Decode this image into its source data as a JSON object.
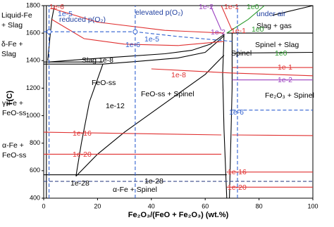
{
  "chart_data": {
    "type": "line",
    "xlabel": "Fe₂O₃/(FeO + Fe₂O₃) (wt.%)",
    "ylabel": "T(C)",
    "xlim": [
      0,
      100
    ],
    "ylim": [
      400,
      1800
    ],
    "xticks": [
      0,
      20,
      40,
      60,
      80,
      100
    ],
    "yticks": [
      400,
      600,
      800,
      1000,
      1200,
      1400,
      1600,
      1800
    ],
    "series": [
      {
        "color": "#000000",
        "x": [
          1,
          1
        ],
        "values": [
          400,
          1800
        ]
      },
      {
        "color": "#000000",
        "x": [
          4,
          3,
          2.5,
          2,
          1.5
        ],
        "values": [
          1800,
          1700,
          1600,
          1500,
          1400
        ]
      },
      {
        "color": "#000000",
        "x": [
          0,
          22
        ],
        "values": [
          1390,
          1390
        ]
      },
      {
        "color": "#000000",
        "x": [
          0,
          22
        ],
        "values": [
          1375,
          1375
        ]
      },
      {
        "color": "#000000",
        "x": [
          2,
          15,
          30,
          45,
          55,
          62,
          67
        ],
        "values": [
          1390,
          1410,
          1430,
          1450,
          1475,
          1520,
          1590
        ]
      },
      {
        "color": "#000000",
        "x": [
          22,
          35,
          50,
          60,
          67
        ],
        "values": [
          1375,
          1395,
          1420,
          1460,
          1580
        ]
      },
      {
        "color": "#000000",
        "x": [
          22,
          17,
          14,
          12
        ],
        "values": [
          1375,
          1100,
          800,
          560
        ]
      },
      {
        "color": "#000000",
        "x": [
          12,
          20,
          30,
          40,
          50,
          60,
          67
        ],
        "values": [
          560,
          720,
          880,
          1020,
          1160,
          1300,
          1440
        ]
      },
      {
        "color": "#000000",
        "x": [
          0,
          68
        ],
        "values": [
          570,
          570
        ]
      },
      {
        "color": "#000000",
        "x": [
          67,
          66.5,
          67,
          68
        ],
        "values": [
          1590,
          1300,
          900,
          400
        ]
      },
      {
        "color": "#000000",
        "x": [
          70,
          70,
          69.5,
          69
        ],
        "values": [
          1600,
          1200,
          800,
          400
        ]
      },
      {
        "color": "#000000",
        "x": [
          68,
          100
        ],
        "values": [
          1600,
          1600
        ]
      },
      {
        "color": "#000000",
        "x": [
          70,
          100
        ],
        "values": [
          1455,
          1460
        ]
      },
      {
        "color": "#000000",
        "x": [
          85,
          100
        ],
        "values": [
          1730,
          1800
        ]
      },
      {
        "color": "#e03030",
        "x": [
          3,
          20,
          45,
          67
        ],
        "values": [
          1780,
          1680,
          1620,
          1600
        ]
      },
      {
        "color": "#e03030",
        "x": [
          3,
          15,
          30,
          50,
          67
        ],
        "values": [
          1700,
          1560,
          1520,
          1510,
          1540
        ]
      },
      {
        "color": "#e03030",
        "x": [
          40,
          70,
          100
        ],
        "values": [
          1340,
          1310,
          1290
        ]
      },
      {
        "color": "#e03030",
        "x": [
          0,
          66
        ],
        "values": [
          880,
          860
        ]
      },
      {
        "color": "#e03030",
        "x": [
          70,
          100
        ],
        "values": [
          860,
          855
        ]
      },
      {
        "color": "#e03030",
        "x": [
          0,
          66
        ],
        "values": [
          720,
          720
        ]
      },
      {
        "color": "#e03030",
        "x": [
          70,
          100
        ],
        "values": [
          1350,
          1350
        ]
      },
      {
        "color": "#9a3fbf",
        "x": [
          70,
          100
        ],
        "values": [
          1260,
          1260
        ]
      },
      {
        "color": "#e03030",
        "x": [
          68,
          100
        ],
        "values": [
          590,
          590
        ]
      },
      {
        "color": "#e03030",
        "x": [
          68,
          100
        ],
        "values": [
          480,
          480
        ]
      },
      {
        "color": "#2a9a2a",
        "x": [
          68,
          76,
          82
        ],
        "values": [
          1600,
          1700,
          1800
        ]
      },
      {
        "color": "#9a3fbf",
        "x": [
          62,
          66
        ],
        "values": [
          1800,
          1620
        ]
      },
      {
        "color": "#e03030",
        "x": [
          66,
          70
        ],
        "values": [
          1800,
          1620
        ]
      },
      {
        "color": "#3060d0",
        "dash": true,
        "x": [
          2,
          2
        ],
        "values": [
          400,
          1800
        ]
      },
      {
        "color": "#3060d0",
        "dash": true,
        "x": [
          34,
          34
        ],
        "values": [
          400,
          1800
        ]
      },
      {
        "color": "#3060d0",
        "dash": true,
        "x": [
          72,
          72
        ],
        "values": [
          400,
          1800
        ]
      },
      {
        "color": "#3060d0",
        "dash": true,
        "x": [
          0,
          34,
          50,
          70
        ],
        "values": [
          1610,
          1610,
          1575,
          1540
        ]
      },
      {
        "color": "#3060d0",
        "dash": true,
        "x": [
          70,
          100
        ],
        "values": [
          1040,
          1040
        ]
      },
      {
        "color": "#3a4a8a",
        "dash": true,
        "x": [
          0,
          100
        ],
        "values": [
          522,
          522
        ]
      },
      {
        "color": "#3060d0",
        "marker": "circle",
        "x": [
          2,
          34
        ],
        "values": [
          1610,
          1610
        ]
      }
    ],
    "annotations": [
      {
        "text": [
          "Liquid-Fe",
          "+ Slag"
        ],
        "color": "#000000"
      },
      {
        "text": [
          "δ-Fe +",
          "Slag"
        ],
        "color": "#000000"
      },
      {
        "text": "reduced p(O₂)",
        "color": "#1f3f9f"
      },
      {
        "text": "elevated p(O₂)",
        "color": "#1f3f9f"
      },
      {
        "text": "under air",
        "color": "#1f3f9f"
      },
      {
        "text": "Slag + gas",
        "color": "#000000"
      },
      {
        "text": "Slag",
        "color": "#000000"
      },
      {
        "text": "Spinel",
        "color": "#000000"
      },
      {
        "text": "Spinel + Slag",
        "color": "#000000"
      },
      {
        "text": "FeO-ss",
        "color": "#000000"
      },
      {
        "text": "FeO-ss + Spinel",
        "color": "#000000"
      },
      {
        "text": [
          "γ-Fe +",
          "FeO-ss"
        ],
        "color": "#000000"
      },
      {
        "text": "Fe₂O₃ + Spinel",
        "color": "#000000"
      },
      {
        "text": [
          "α-Fe +",
          "FeO-ss"
        ],
        "color": "#000000"
      },
      {
        "text": "α-Fe + Spinel",
        "color": "#000000"
      },
      {
        "text": "1e-6",
        "color": "#e03030"
      },
      {
        "text": "1e-5",
        "color": "#3060d0"
      },
      {
        "text": "1e-6",
        "color": "#3060d0"
      },
      {
        "text": "1e-5",
        "color": "#3060d0"
      },
      {
        "text": "1e-2",
        "color": "#9a3fbf"
      },
      {
        "text": "1e-1",
        "color": "#e03030"
      },
      {
        "text": "1e0",
        "color": "#2a9a2a"
      },
      {
        "text": "1e-2",
        "color": "#9a3fbf"
      },
      {
        "text": "1e-1",
        "color": "#e03030"
      },
      {
        "text": "1e0",
        "color": "#2a9a2a"
      },
      {
        "text": "1e0",
        "color": "#2a9a2a"
      },
      {
        "text": "1e-1",
        "color": "#e03030"
      },
      {
        "text": "1e-2",
        "color": "#9a3fbf"
      },
      {
        "text": "1e-8",
        "color": "#000000"
      },
      {
        "text": "1e-8",
        "color": "#e03030"
      },
      {
        "text": "1e-12",
        "color": "#000000"
      },
      {
        "text": "1e-6",
        "color": "#3060d0"
      },
      {
        "text": "1e-16",
        "color": "#e03030"
      },
      {
        "text": "1e-20",
        "color": "#e03030"
      },
      {
        "text": "1e-16",
        "color": "#e03030"
      },
      {
        "text": "1e-20",
        "color": "#e03030"
      },
      {
        "text": "1e-28",
        "color": "#000000"
      },
      {
        "text": "1e-28",
        "color": "#000000"
      }
    ]
  }
}
